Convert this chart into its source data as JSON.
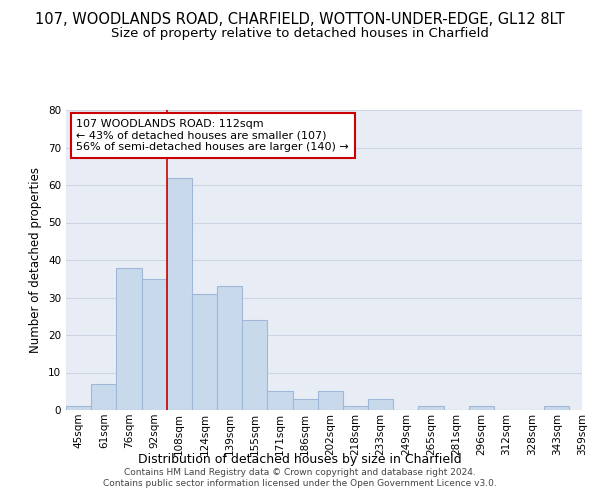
{
  "title": "107, WOODLANDS ROAD, CHARFIELD, WOTTON-UNDER-EDGE, GL12 8LT",
  "subtitle": "Size of property relative to detached houses in Charfield",
  "xlabel": "Distribution of detached houses by size in Charfield",
  "ylabel": "Number of detached properties",
  "bar_values": [
    1,
    7,
    38,
    35,
    62,
    31,
    33,
    24,
    5,
    3,
    5,
    1,
    3,
    0,
    1,
    0,
    1,
    0,
    0,
    1
  ],
  "bar_labels": [
    "45sqm",
    "61sqm",
    "76sqm",
    "92sqm",
    "108sqm",
    "124sqm",
    "139sqm",
    "155sqm",
    "171sqm",
    "186sqm",
    "202sqm",
    "218sqm",
    "233sqm",
    "249sqm",
    "265sqm",
    "281sqm",
    "296sqm",
    "312sqm",
    "328sqm",
    "343sqm",
    "359sqm"
  ],
  "bar_color": "#c9d9ec",
  "bar_edge_color": "#a0b8d8",
  "annotation_line1": "107 WOODLANDS ROAD: 112sqm",
  "annotation_line2": "← 43% of detached houses are smaller (107)",
  "annotation_line3": "56% of semi-detached houses are larger (140) →",
  "annotation_box_color": "#ffffff",
  "annotation_box_edge": "#cc0000",
  "vline_color": "#cc0000",
  "ylim": [
    0,
    80
  ],
  "yticks": [
    0,
    10,
    20,
    30,
    40,
    50,
    60,
    70,
    80
  ],
  "grid_color": "#cdd5e5",
  "background_color": "#e8edf5",
  "footer": "Contains HM Land Registry data © Crown copyright and database right 2024.\nContains public sector information licensed under the Open Government Licence v3.0.",
  "title_fontsize": 10.5,
  "subtitle_fontsize": 9.5,
  "xlabel_fontsize": 9,
  "ylabel_fontsize": 8.5,
  "tick_fontsize": 7.5,
  "annotation_fontsize": 8,
  "footer_fontsize": 6.5
}
